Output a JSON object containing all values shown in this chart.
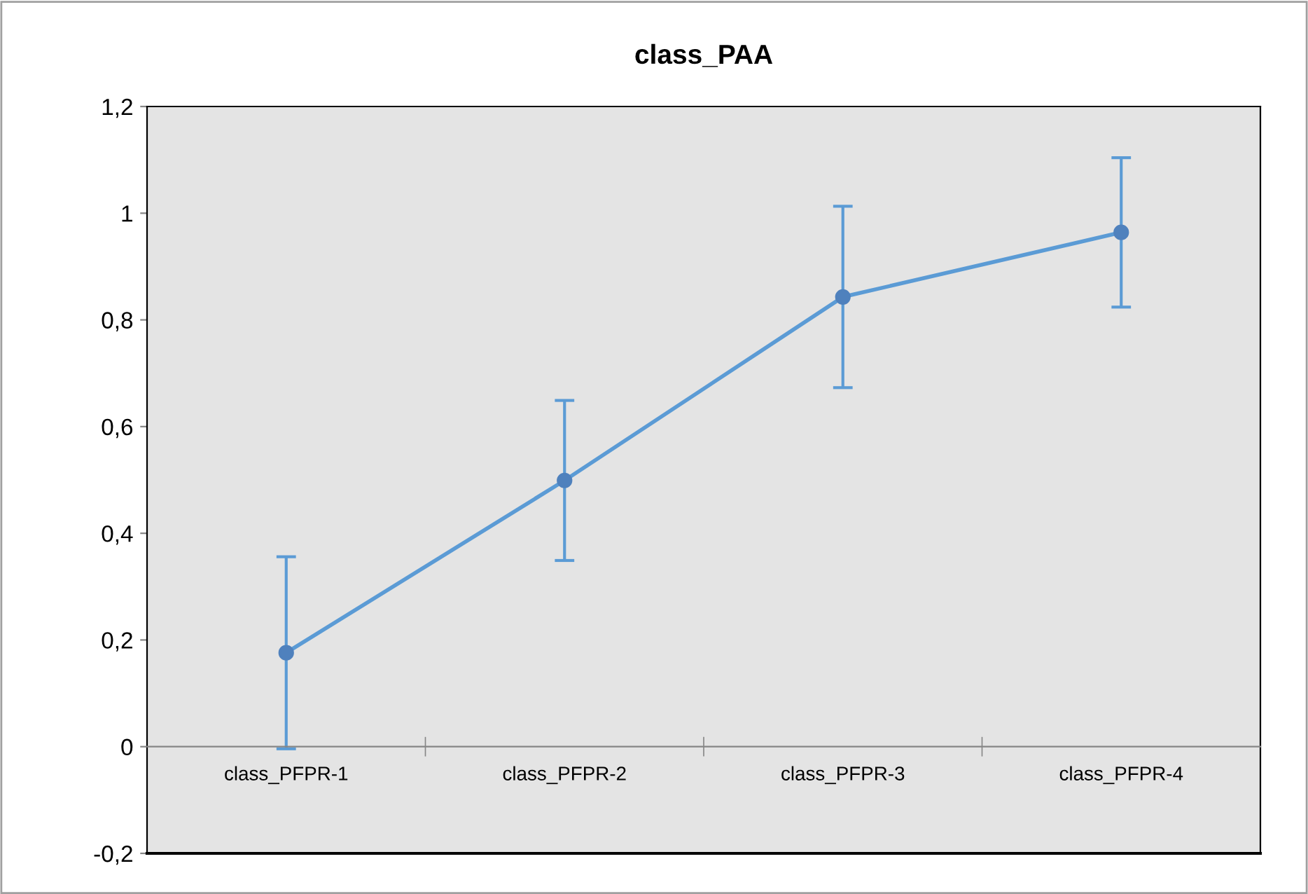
{
  "chart_data": {
    "type": "line",
    "title": "class_PAA",
    "categories": [
      "class_PFPR-1",
      "class_PFPR-2",
      "class_PFPR-3",
      "class_PFPR-4"
    ],
    "series": [
      {
        "color": "#5b9bd5",
        "values": [
          0.176,
          0.499,
          0.843,
          0.964
        ],
        "errors": [
          0.18,
          0.15,
          0.17,
          0.14
        ]
      }
    ],
    "ylim": [
      -0.2,
      1.2
    ],
    "yticks": [
      {
        "value": -0.2,
        "label": "-0,2"
      },
      0,
      {
        "value": 0.2,
        "label": "0,2"
      },
      {
        "value": 0.4,
        "label": "0,4"
      },
      {
        "value": 0.6,
        "label": "0,6"
      },
      {
        "value": 0.8,
        "label": "0,8"
      },
      1,
      {
        "value": 1.2,
        "label": "1,2"
      }
    ],
    "marker": "circle",
    "line_style": "solid",
    "grid": false,
    "legend": false
  }
}
